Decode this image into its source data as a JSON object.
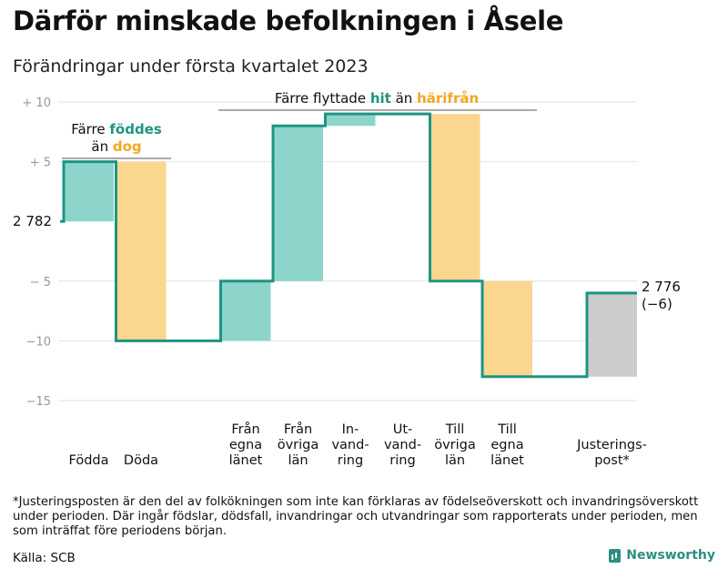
{
  "title": "Därför minskade befolkningen i Åsele",
  "subtitle": "Förändringar under första kvartalet 2023",
  "footnote": "*Justeringsposten är den del av folkökningen som inte kan förklaras av födelseöverskott och invandringsöverskott under perioden. Där ingår födslar, dödsfall, invandringar och utvandringar som rapporterats under perioden, men som inträffat före periodens början.",
  "source": "Källa: SCB",
  "brand": "Newsworthy",
  "colors": {
    "gain": "#8dd5cb",
    "loss": "#fbd68f",
    "adjust": "#cccccc",
    "line": "#1e9483",
    "grid": "#e2e2e2",
    "accent_green": "#1e9483",
    "accent_orange": "#f5a623"
  },
  "chart_data": {
    "type": "waterfall",
    "title": "Därför minskade befolkningen i Åsele",
    "subtitle": "Förändringar under första kvartalet 2023",
    "ylim": [
      -15,
      10
    ],
    "yticks": [
      10,
      5,
      -5,
      -10,
      -15
    ],
    "ytick_labels": [
      "+ 10",
      "+ 5",
      "− 5",
      "−10",
      "−15"
    ],
    "start_label": "2 782",
    "end_label": [
      "2 776",
      "(−6)"
    ],
    "start_value": 0,
    "steps": [
      {
        "label": "Födda",
        "value": 5,
        "kind": "gain"
      },
      {
        "label": "Döda",
        "value": -15,
        "kind": "loss"
      },
      {
        "label": "Från egna länet",
        "value": 5,
        "kind": "gain"
      },
      {
        "label": "Från övriga län",
        "value": 13,
        "kind": "gain"
      },
      {
        "label": "Invandring",
        "value": 1,
        "kind": "gain"
      },
      {
        "label": "Utvandring",
        "value": 0,
        "kind": "loss"
      },
      {
        "label": "Till övriga län",
        "value": -14,
        "kind": "loss"
      },
      {
        "label": "Till egna länet",
        "value": -8,
        "kind": "loss"
      },
      {
        "label": "Justeringspost*",
        "value": 7,
        "kind": "adjust"
      }
    ],
    "category_labels": [
      [
        "Födda"
      ],
      [
        "Döda"
      ],
      [
        "Från",
        "egna",
        "länet"
      ],
      [
        "Från",
        "övriga",
        "län"
      ],
      [
        "In-",
        "vand-",
        "ring"
      ],
      [
        "Ut-",
        "vand-",
        "ring"
      ],
      [
        "Till",
        "övriga",
        "län"
      ],
      [
        "Till",
        "egna",
        "länet"
      ],
      [
        "Justerings-",
        "post*"
      ]
    ],
    "annotations": [
      {
        "parts": [
          {
            "text": "Färre ",
            "color": "dark"
          },
          {
            "text": "föddes",
            "color": "green"
          }
        ],
        "line2": [
          {
            "text": "än ",
            "color": "dark"
          },
          {
            "text": "dog",
            "color": "orange"
          }
        ]
      },
      {
        "parts": [
          {
            "text": "Färre flyttade ",
            "color": "dark"
          },
          {
            "text": "hit",
            "color": "green"
          },
          {
            "text": " än ",
            "color": "dark"
          },
          {
            "text": "härifrån",
            "color": "orange"
          }
        ]
      }
    ]
  }
}
